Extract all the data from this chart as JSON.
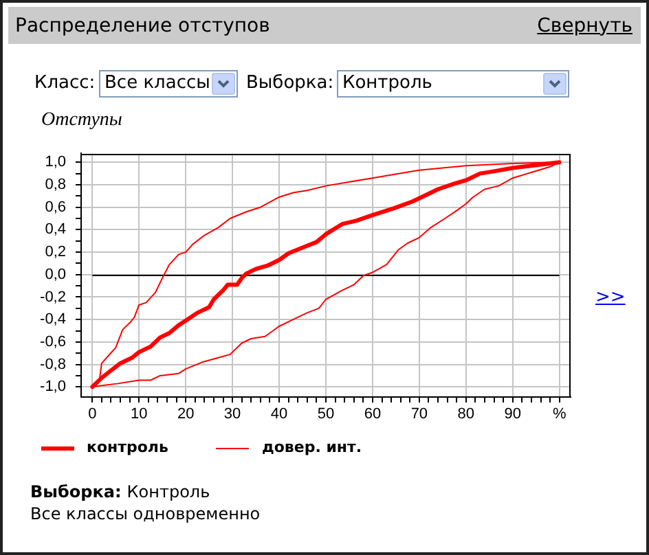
{
  "chart_data": {
    "type": "line",
    "title": "Распределение отступов",
    "ylabel": "Отступы",
    "annotations": [
      "Свернуть",
      "Класс:",
      "Все классы",
      "Выборка:",
      "Контроль",
      ">>",
      "Выборка:",
      "Контроль",
      "Все классы одновременно"
    ],
    "series": [
      {
        "name": "контроль",
        "color": "#ff0000",
        "x": [
          0,
          2,
          3.5,
          6,
          8.5,
          10,
          12.5,
          14.5,
          16.5,
          18.5,
          20,
          22.5,
          25,
          26,
          28,
          29,
          31,
          32,
          33,
          35,
          37.5,
          40,
          42,
          45,
          48,
          50,
          53.5,
          56.5,
          60,
          64.5,
          68.5,
          71.5,
          74,
          77.5,
          80,
          83,
          86,
          90,
          94,
          100
        ],
        "values": [
          -1,
          -0.92,
          -0.87,
          -0.79,
          -0.74,
          -0.69,
          -0.64,
          -0.56,
          -0.52,
          -0.45,
          -0.41,
          -0.34,
          -0.29,
          -0.22,
          -0.14,
          -0.09,
          -0.09,
          -0.03,
          0.01,
          0.05,
          0.08,
          0.13,
          0.19,
          0.24,
          0.29,
          0.36,
          0.45,
          0.48,
          0.53,
          0.59,
          0.65,
          0.71,
          0.76,
          0.81,
          0.84,
          0.9,
          0.92,
          0.95,
          0.97,
          1
        ]
      },
      {
        "name": "довер. инт.",
        "color": "#ff0000",
        "x": [
          0,
          1.5,
          2,
          3.5,
          5,
          6.5,
          8,
          9,
          10,
          11.5,
          13.5,
          15,
          16.5,
          18.5,
          20,
          21.5,
          24,
          27,
          29.5,
          33,
          36,
          40,
          43,
          46,
          50,
          60,
          70,
          80,
          90,
          100
        ],
        "values": [
          -1,
          -0.95,
          -0.79,
          -0.72,
          -0.65,
          -0.49,
          -0.43,
          -0.38,
          -0.27,
          -0.25,
          -0.16,
          -0.03,
          0.09,
          0.18,
          0.2,
          0.27,
          0.35,
          0.42,
          0.5,
          0.56,
          0.6,
          0.69,
          0.73,
          0.75,
          0.79,
          0.86,
          0.93,
          0.97,
          0.99,
          1
        ]
      },
      {
        "color": "#ff0000",
        "x": [
          0,
          1.5,
          5.5,
          10,
          12.5,
          14.5,
          18.5,
          20,
          23.5,
          27,
          29.5,
          32,
          34,
          37,
          40,
          43,
          46,
          48.5,
          50,
          53.5,
          56,
          58,
          60,
          63,
          65.5,
          67.5,
          70,
          72.5,
          75.5,
          78,
          80,
          81.5,
          84,
          87,
          90,
          94,
          98,
          100
        ],
        "values": [
          -1,
          -0.99,
          -0.97,
          -0.94,
          -0.94,
          -0.9,
          -0.88,
          -0.84,
          -0.78,
          -0.74,
          -0.71,
          -0.61,
          -0.57,
          -0.55,
          -0.46,
          -0.4,
          -0.34,
          -0.3,
          -0.22,
          -0.14,
          -0.09,
          -0.01,
          0.02,
          0.09,
          0.22,
          0.28,
          0.33,
          0.42,
          0.5,
          0.57,
          0.63,
          0.69,
          0.76,
          0.79,
          0.86,
          0.91,
          0.96,
          1
        ]
      }
    ],
    "xlim": [
      -2.4,
      102.4
    ],
    "ylim": [
      -1.09,
      1.08
    ],
    "xticks": [
      0,
      {
        "value": 2,
        "label": null
      },
      {
        "value": 4,
        "label": null
      },
      {
        "value": 6,
        "label": null
      },
      {
        "value": 8,
        "label": null
      },
      10,
      {
        "value": 12,
        "label": null
      },
      {
        "value": 14,
        "label": null
      },
      {
        "value": 16,
        "label": null
      },
      {
        "value": 18,
        "label": null
      },
      20,
      {
        "value": 22,
        "label": null
      },
      {
        "value": 24,
        "label": null
      },
      {
        "value": 26,
        "label": null
      },
      {
        "value": 28,
        "label": null
      },
      30,
      {
        "value": 32,
        "label": null
      },
      {
        "value": 34,
        "label": null
      },
      {
        "value": 36,
        "label": null
      },
      {
        "value": 38,
        "label": null
      },
      40,
      {
        "value": 42,
        "label": null
      },
      {
        "value": 44,
        "label": null
      },
      {
        "value": 46,
        "label": null
      },
      {
        "value": 48,
        "label": null
      },
      50,
      {
        "value": 52,
        "label": null
      },
      {
        "value": 54,
        "label": null
      },
      {
        "value": 56,
        "label": null
      },
      {
        "value": 58,
        "label": null
      },
      60,
      {
        "value": 62,
        "label": null
      },
      {
        "value": 64,
        "label": null
      },
      {
        "value": 66,
        "label": null
      },
      {
        "value": 68,
        "label": null
      },
      70,
      {
        "value": 72,
        "label": null
      },
      {
        "value": 74,
        "label": null
      },
      {
        "value": 76,
        "label": null
      },
      {
        "value": 78,
        "label": null
      },
      80,
      {
        "value": 82,
        "label": null
      },
      {
        "value": 84,
        "label": null
      },
      {
        "value": 86,
        "label": null
      },
      {
        "value": 88,
        "label": null
      },
      90,
      {
        "value": 92,
        "label": null
      },
      {
        "value": 94,
        "label": null
      },
      {
        "value": 96,
        "label": null
      },
      {
        "value": 98,
        "label": null
      },
      {
        "value": 100,
        "label": "%"
      }
    ],
    "yticks": [
      {
        "value": -1,
        "label": "-1,0"
      },
      {
        "value": -0.9,
        "label": null
      },
      {
        "value": -0.8,
        "label": "-0,8"
      },
      {
        "value": -0.7,
        "label": null
      },
      {
        "value": -0.6,
        "label": "-0,6"
      },
      {
        "value": -0.5,
        "label": null
      },
      {
        "value": -0.4,
        "label": "-0,4"
      },
      {
        "value": -0.3,
        "label": null
      },
      {
        "value": -0.2,
        "label": "-0,2"
      },
      {
        "value": -0.1,
        "label": null
      },
      {
        "value": 0,
        "label": "0,0"
      },
      {
        "value": 0.1,
        "label": null
      },
      {
        "value": 0.2,
        "label": "0,2"
      },
      {
        "value": 0.3,
        "label": null
      },
      {
        "value": 0.4,
        "label": "0,4"
      },
      {
        "value": 0.5,
        "label": null
      },
      {
        "value": 0.6,
        "label": "0,6"
      },
      {
        "value": 0.7,
        "label": null
      },
      {
        "value": 0.8,
        "label": "0,8"
      },
      {
        "value": 0.9,
        "label": null
      },
      {
        "value": 1,
        "label": "1,0"
      }
    ],
    "grid": true,
    "legend": "bottom left",
    "ref_lines": [
      {
        "axis": "y",
        "value": 0,
        "color": "#000000"
      }
    ]
  }
}
